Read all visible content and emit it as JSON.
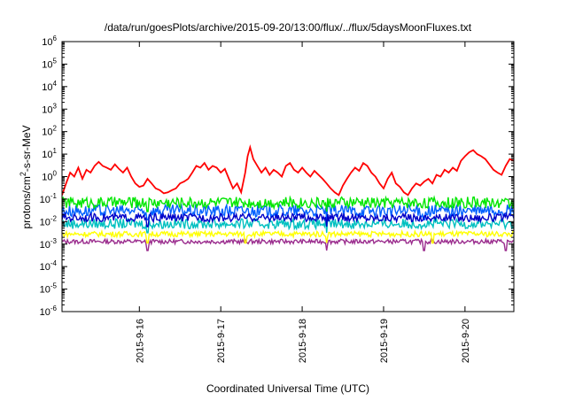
{
  "chart_data": {
    "type": "line",
    "title": "/data/run/goesPlots/archive/2015-09-20/13:00/flux/../flux/5daysMoonFluxes.txt",
    "xlabel": "Coordinated Universal Time (UTC)",
    "ylabel_parts": {
      "base": "protons/cm",
      "sup": "2",
      "rest": "-s-sr-MeV"
    },
    "y_scale": "log",
    "ylim": [
      1e-06,
      1000000.0
    ],
    "y_ticks": [
      {
        "value": 1e-06,
        "base": "10",
        "exp": "-6"
      },
      {
        "value": 1e-05,
        "base": "10",
        "exp": "-5"
      },
      {
        "value": 0.0001,
        "base": "10",
        "exp": "-4"
      },
      {
        "value": 0.001,
        "base": "10",
        "exp": "-3"
      },
      {
        "value": 0.01,
        "base": "10",
        "exp": "-2"
      },
      {
        "value": 0.1,
        "base": "10",
        "exp": "-1"
      },
      {
        "value": 1,
        "base": "10",
        "exp": "0"
      },
      {
        "value": 10,
        "base": "10",
        "exp": "1"
      },
      {
        "value": 100,
        "base": "10",
        "exp": "2"
      },
      {
        "value": 1000,
        "base": "10",
        "exp": "3"
      },
      {
        "value": 10000,
        "base": "10",
        "exp": "4"
      },
      {
        "value": 100000,
        "base": "10",
        "exp": "5"
      },
      {
        "value": 1000000,
        "base": "10",
        "exp": "6"
      }
    ],
    "xlim": [
      15.05,
      20.6
    ],
    "x_ticks": [
      {
        "value": 16,
        "label": "2015-9-16"
      },
      {
        "value": 17,
        "label": "2015-9-17"
      },
      {
        "value": 18,
        "label": "2015-9-18"
      },
      {
        "value": 19,
        "label": "2015-9-19"
      },
      {
        "value": 20,
        "label": "2015-9-20"
      }
    ],
    "grid": false,
    "series": [
      {
        "color": "#9b2d8e",
        "level": 0.0013,
        "noise": 0.1,
        "dips": [
          16.1,
          18.3,
          19.5,
          20.5
        ]
      },
      {
        "color": "#ffff00",
        "level": 0.0028,
        "noise": 0.12,
        "dips": [
          16.1,
          17.3,
          18.3,
          19.6
        ]
      },
      {
        "color": "#00c0c0",
        "level": 0.008,
        "noise": 0.22,
        "dips": [
          16.1,
          18.3
        ]
      },
      {
        "color": "#0060ff",
        "level": 0.03,
        "noise": 0.28,
        "dips": [
          16.1,
          18.3,
          19.5
        ]
      },
      {
        "color": "#0000c8",
        "level": 0.015,
        "noise": 0.18,
        "dips": [
          16.1,
          18.3
        ]
      },
      {
        "color": "#00e600",
        "level": 0.07,
        "noise": 0.25,
        "dips": [
          16.1,
          18.3
        ]
      },
      {
        "color": "#ff0000",
        "x": [
          15.05,
          15.1,
          15.15,
          15.2,
          15.25,
          15.3,
          15.35,
          15.4,
          15.45,
          15.5,
          15.55,
          15.6,
          15.65,
          15.7,
          15.75,
          15.8,
          15.85,
          15.9,
          15.95,
          16.0,
          16.05,
          16.1,
          16.15,
          16.2,
          16.25,
          16.3,
          16.35,
          16.4,
          16.45,
          16.5,
          16.55,
          16.6,
          16.65,
          16.7,
          16.75,
          16.8,
          16.85,
          16.9,
          16.95,
          17.0,
          17.05,
          17.1,
          17.15,
          17.2,
          17.25,
          17.3,
          17.33,
          17.36,
          17.4,
          17.45,
          17.5,
          17.55,
          17.6,
          17.65,
          17.7,
          17.75,
          17.8,
          17.85,
          17.9,
          17.95,
          18.0,
          18.05,
          18.1,
          18.15,
          18.2,
          18.25,
          18.3,
          18.35,
          18.4,
          18.45,
          18.5,
          18.55,
          18.6,
          18.65,
          18.7,
          18.75,
          18.8,
          18.85,
          18.9,
          18.95,
          19.0,
          19.05,
          19.1,
          19.15,
          19.2,
          19.25,
          19.3,
          19.35,
          19.4,
          19.45,
          19.5,
          19.55,
          19.6,
          19.65,
          19.7,
          19.75,
          19.8,
          19.85,
          19.9,
          19.95,
          20.0,
          20.05,
          20.1,
          20.15,
          20.2,
          20.25,
          20.3,
          20.35,
          20.4,
          20.45,
          20.5,
          20.55,
          20.6
        ],
        "y": [
          0.15,
          0.5,
          1.5,
          1.0,
          2.5,
          0.8,
          2.0,
          1.5,
          3.0,
          4.5,
          3.0,
          2.5,
          2.0,
          3.5,
          2.2,
          1.5,
          2.5,
          1.0,
          0.5,
          0.35,
          0.4,
          0.8,
          0.5,
          0.3,
          0.25,
          0.18,
          0.2,
          0.25,
          0.3,
          0.5,
          0.6,
          0.8,
          1.5,
          3.0,
          2.5,
          4.0,
          2.0,
          3.0,
          2.5,
          1.5,
          2.2,
          0.8,
          0.3,
          0.5,
          0.2,
          1.5,
          8.0,
          20.0,
          6.0,
          3.0,
          1.5,
          2.5,
          1.2,
          2.0,
          1.5,
          1.0,
          3.0,
          4.0,
          2.0,
          1.5,
          2.5,
          1.5,
          1.0,
          1.8,
          1.2,
          0.8,
          0.5,
          0.3,
          0.2,
          0.15,
          0.4,
          0.8,
          1.5,
          2.5,
          1.8,
          4.0,
          3.0,
          1.5,
          1.0,
          0.5,
          0.3,
          0.8,
          1.5,
          0.5,
          0.35,
          0.2,
          0.15,
          0.3,
          0.5,
          0.4,
          0.6,
          0.8,
          0.5,
          1.2,
          1.0,
          2.0,
          1.5,
          2.5,
          1.8,
          5.0,
          8.0,
          12.0,
          15.0,
          10.0,
          8.0,
          6.0,
          3.5,
          2.0,
          1.5,
          1.2,
          3.0,
          6.0,
          5.0
        ]
      }
    ]
  }
}
